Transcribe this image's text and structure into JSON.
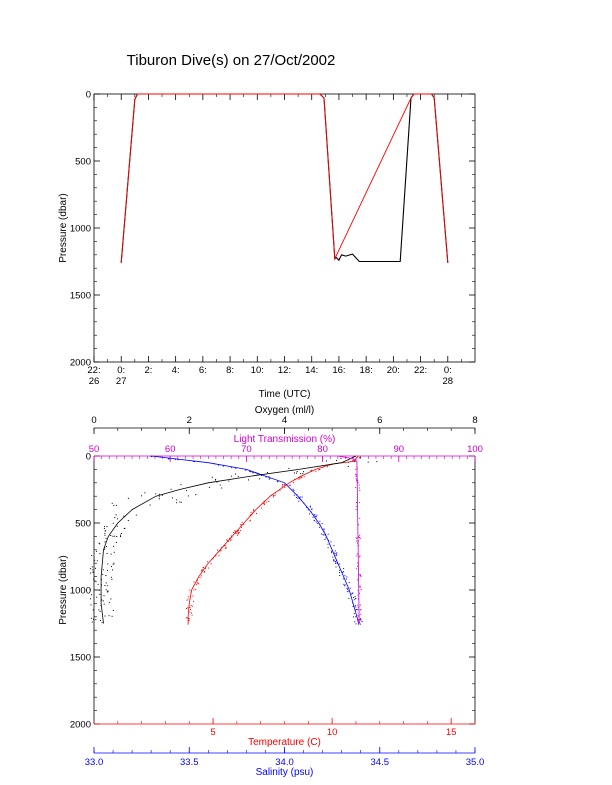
{
  "title": "Tiburon Dive(s) on 27/Oct/2002",
  "colors": {
    "axis": "#000000",
    "oxygen": "#000000",
    "light": "#d000d0",
    "temperature": "#ff0000",
    "salinity": "#0000ff"
  },
  "chart_data": [
    {
      "type": "line",
      "xlabel": "Time (UTC)",
      "ylabel": "Pressure (dbar)",
      "x_range_hours": [
        -2,
        26
      ],
      "ylim": [
        2000,
        0
      ],
      "x_tick_labels": [
        {
          "top": "22:",
          "bottom": "26",
          "h": -2
        },
        {
          "top": "0:",
          "bottom": "27",
          "h": 0
        },
        {
          "top": "2:",
          "bottom": "",
          "h": 2
        },
        {
          "top": "4:",
          "bottom": "",
          "h": 4
        },
        {
          "top": "6:",
          "bottom": "",
          "h": 6
        },
        {
          "top": "8:",
          "bottom": "",
          "h": 8
        },
        {
          "top": "10:",
          "bottom": "",
          "h": 10
        },
        {
          "top": "12:",
          "bottom": "",
          "h": 12
        },
        {
          "top": "14:",
          "bottom": "",
          "h": 14
        },
        {
          "top": "16:",
          "bottom": "",
          "h": 16
        },
        {
          "top": "18:",
          "bottom": "",
          "h": 18
        },
        {
          "top": "20:",
          "bottom": "",
          "h": 20
        },
        {
          "top": "22:",
          "bottom": "",
          "h": 22
        },
        {
          "top": "0:",
          "bottom": "28",
          "h": 24
        }
      ],
      "y_ticks": [
        0,
        500,
        1000,
        1500,
        2000
      ],
      "series": [
        {
          "color": "black",
          "hours": [
            0,
            1.0,
            1.2,
            14.6,
            14.9,
            15.7,
            15.8,
            16.0,
            16.2,
            16.5,
            17.0,
            17.5,
            18.0,
            19.0,
            20.0,
            20.5,
            21.3,
            21.5,
            22.8,
            23.0,
            24.0
          ],
          "pressure": [
            1260,
            40,
            0,
            0,
            30,
            1230,
            1220,
            1240,
            1200,
            1210,
            1195,
            1250,
            1250,
            1250,
            1250,
            1250,
            30,
            0,
            0,
            30,
            1260
          ]
        },
        {
          "color": "red",
          "hours": [
            0,
            1.0,
            1.2,
            14.6,
            14.9,
            15.7,
            21.3,
            21.5,
            22.8,
            23.0,
            24.0
          ],
          "pressure": [
            1260,
            40,
            0,
            0,
            30,
            1230,
            30,
            0,
            0,
            30,
            1260
          ]
        }
      ]
    },
    {
      "type": "scatter",
      "ylabel": "Pressure (dbar)",
      "ylim": [
        2000,
        0
      ],
      "y_ticks": [
        0,
        500,
        1000,
        1500,
        2000
      ],
      "axes": {
        "oxygen": {
          "label": "Oxygen (ml/l)",
          "range": [
            0,
            8
          ],
          "tick_labels": [
            "0",
            "2",
            "4",
            "6",
            "8"
          ],
          "position": "top"
        },
        "light": {
          "label": "Light Transmission (%)",
          "range": [
            50,
            100
          ],
          "tick_labels": [
            "50",
            "60",
            "70",
            "80",
            "90",
            "100"
          ],
          "position": "top"
        },
        "temperature": {
          "label": "Temperature (C)",
          "range": [
            0,
            16
          ],
          "tick_labels": [
            "5",
            "10",
            "15"
          ],
          "position": "bottom"
        },
        "salinity": {
          "label": "Salinity (psu)",
          "range": [
            33.0,
            35.0
          ],
          "tick_labels": [
            "33.0",
            "33.5",
            "34.0",
            "34.5",
            "35.0"
          ],
          "position": "bottom"
        }
      },
      "series": [
        {
          "variable": "temperature",
          "pressure": [
            0,
            40,
            60,
            100,
            150,
            200,
            300,
            400,
            500,
            600,
            700,
            800,
            900,
            1000,
            1100,
            1200,
            1260
          ],
          "values": [
            11.1,
            10.9,
            10.0,
            9.3,
            8.7,
            8.2,
            7.4,
            6.8,
            6.3,
            5.8,
            5.3,
            4.8,
            4.4,
            4.1,
            4.0,
            3.95,
            3.95
          ]
        },
        {
          "variable": "salinity",
          "pressure": [
            0,
            50,
            100,
            200,
            300,
            400,
            500,
            600,
            700,
            800,
            900,
            1000,
            1100,
            1200,
            1260
          ],
          "values": [
            33.3,
            33.6,
            33.8,
            34.0,
            34.07,
            34.13,
            34.18,
            34.22,
            34.25,
            34.28,
            34.31,
            34.34,
            34.36,
            34.38,
            34.39
          ]
        },
        {
          "variable": "oxygen",
          "pressure": [
            0,
            50,
            100,
            150,
            200,
            250,
            300,
            400,
            500,
            600,
            700,
            900,
            1100,
            1250
          ],
          "values": [
            5.5,
            5.2,
            4.3,
            3.3,
            2.4,
            1.8,
            1.3,
            0.8,
            0.5,
            0.3,
            0.2,
            0.15,
            0.15,
            0.2
          ]
        },
        {
          "variable": "light",
          "pressure": [
            0,
            20,
            40,
            1240,
            1260
          ],
          "values": [
            82,
            84,
            84.5,
            84.8,
            85
          ]
        }
      ]
    }
  ]
}
